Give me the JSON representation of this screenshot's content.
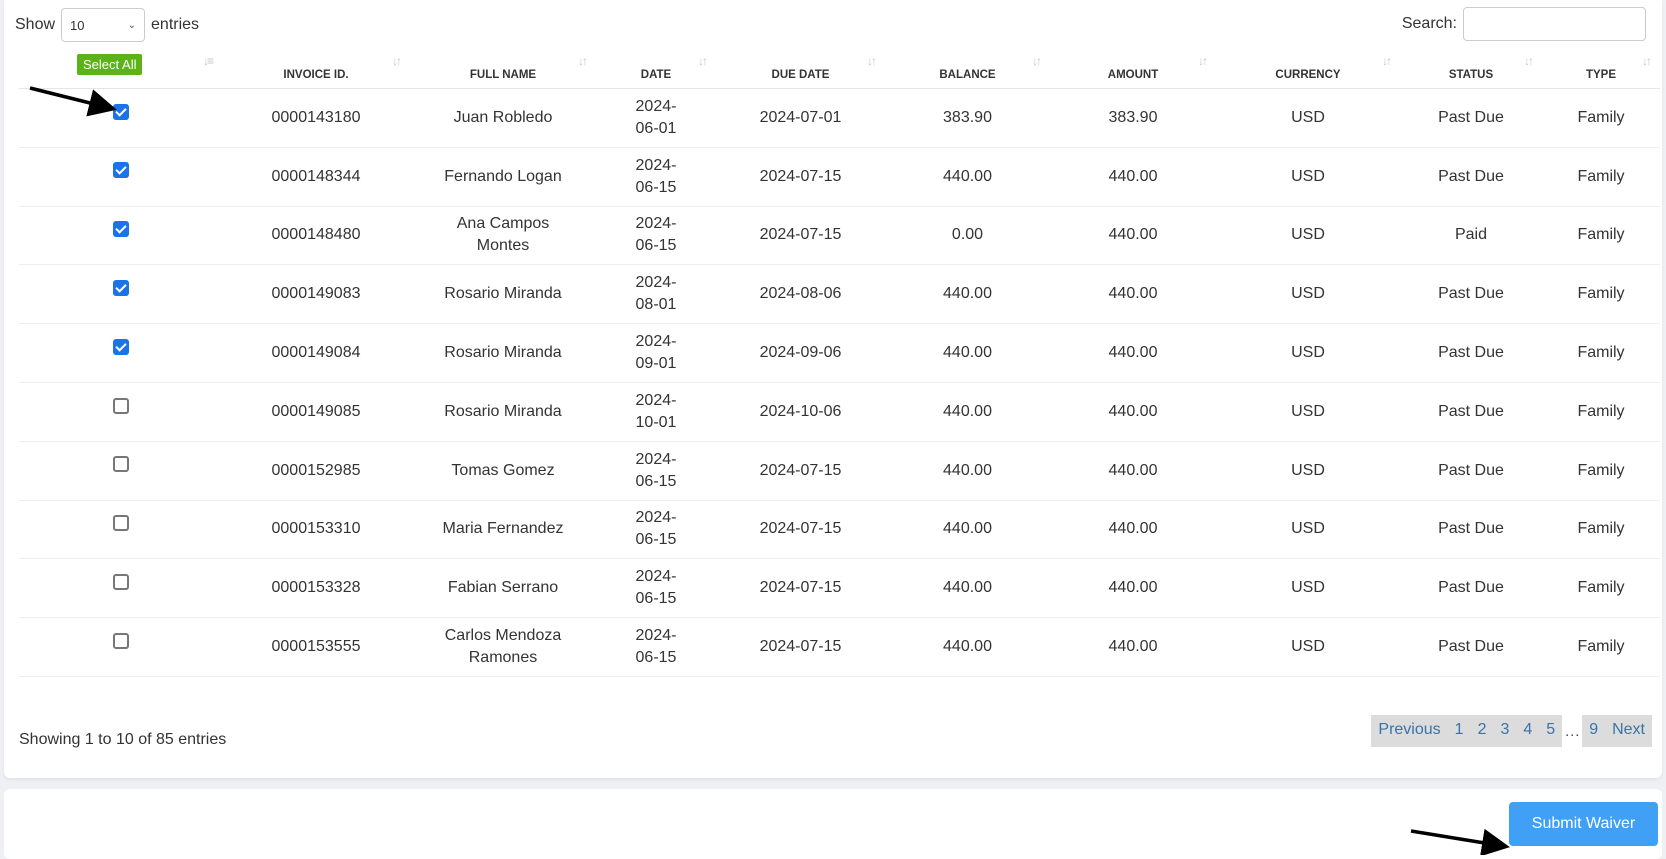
{
  "length_menu": {
    "show": "Show",
    "value": "10",
    "entries": "entries"
  },
  "search": {
    "label": "Search:",
    "value": ""
  },
  "select_all": "Select All",
  "columns": [
    "",
    "INVOICE ID.",
    "FULL NAME",
    "DATE",
    "DUE DATE",
    "BALANCE",
    "AMOUNT",
    "CURRENCY",
    "STATUS",
    "TYPE"
  ],
  "rows": [
    {
      "checked": true,
      "cells": [
        "0000143180",
        "Juan Robledo",
        "2024-06-01",
        "2024-07-01",
        "383.90",
        "383.90",
        "USD",
        "Past Due",
        "Family"
      ]
    },
    {
      "checked": true,
      "cells": [
        "0000148344",
        "Fernando Logan",
        "2024-06-15",
        "2024-07-15",
        "440.00",
        "440.00",
        "USD",
        "Past Due",
        "Family"
      ]
    },
    {
      "checked": true,
      "cells": [
        "0000148480",
        "Ana Campos Montes",
        "2024-06-15",
        "2024-07-15",
        "0.00",
        "440.00",
        "USD",
        "Paid",
        "Family"
      ]
    },
    {
      "checked": true,
      "cells": [
        "0000149083",
        "Rosario Miranda",
        "2024-08-01",
        "2024-08-06",
        "440.00",
        "440.00",
        "USD",
        "Past Due",
        "Family"
      ]
    },
    {
      "checked": true,
      "cells": [
        "0000149084",
        "Rosario Miranda",
        "2024-09-01",
        "2024-09-06",
        "440.00",
        "440.00",
        "USD",
        "Past Due",
        "Family"
      ]
    },
    {
      "checked": false,
      "cells": [
        "0000149085",
        "Rosario Miranda",
        "2024-10-01",
        "2024-10-06",
        "440.00",
        "440.00",
        "USD",
        "Past Due",
        "Family"
      ]
    },
    {
      "checked": false,
      "cells": [
        "0000152985",
        "Tomas Gomez",
        "2024-06-15",
        "2024-07-15",
        "440.00",
        "440.00",
        "USD",
        "Past Due",
        "Family"
      ]
    },
    {
      "checked": false,
      "cells": [
        "0000153310",
        "Maria Fernandez",
        "2024-06-15",
        "2024-07-15",
        "440.00",
        "440.00",
        "USD",
        "Past Due",
        "Family"
      ]
    },
    {
      "checked": false,
      "cells": [
        "0000153328",
        "Fabian Serrano",
        "2024-06-15",
        "2024-07-15",
        "440.00",
        "440.00",
        "USD",
        "Past Due",
        "Family"
      ]
    },
    {
      "checked": false,
      "cells": [
        "0000153555",
        "Carlos Mendoza Ramones",
        "2024-06-15",
        "2024-07-15",
        "440.00",
        "440.00",
        "USD",
        "Past Due",
        "Family"
      ]
    }
  ],
  "info": "Showing 1 to 10 of 85 entries",
  "pagination": {
    "previous": "Previous",
    "pages": [
      "1",
      "2",
      "3",
      "4",
      "5"
    ],
    "ellipsis": "…",
    "last": "9",
    "next": "Next"
  },
  "submit": "Submit Waiver",
  "colors": {
    "accent": "#3fa0f6",
    "select_all": "#5cb318",
    "checkbox": "#1a73e8",
    "link": "#3a73a8"
  }
}
